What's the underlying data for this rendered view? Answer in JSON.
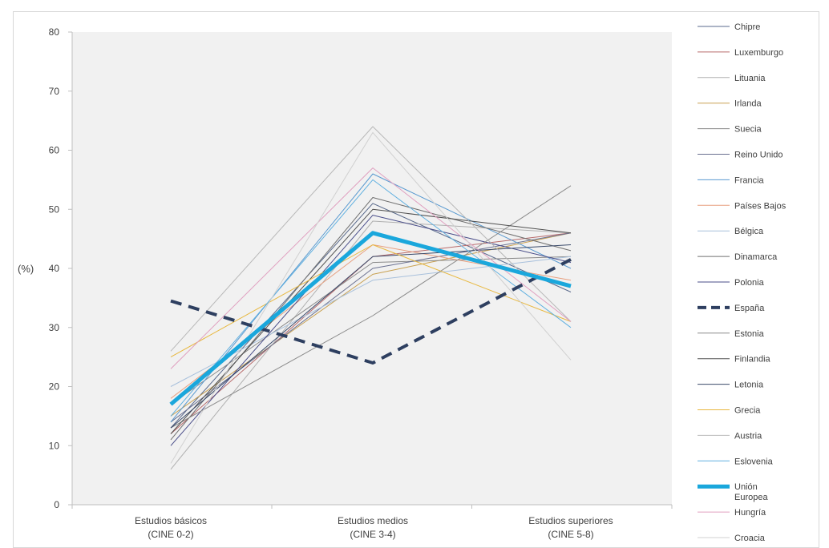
{
  "chart_data": {
    "type": "line",
    "categories": [
      [
        "Estudios básicos",
        "(CINE 0-2)"
      ],
      [
        "Estudios medios",
        "(CINE 3-4)"
      ],
      [
        "Estudios superiores",
        "(CINE 5-8)"
      ]
    ],
    "ylabel": "(%)",
    "ylim": [
      0,
      80
    ],
    "yticks": [
      0,
      10,
      20,
      30,
      40,
      50,
      60,
      70,
      80
    ],
    "grid": false,
    "plot_background": "#f1f1f1",
    "legend_position": "right",
    "series": [
      {
        "name": "Chipre",
        "values": [
          13,
          51,
          36
        ],
        "color": "#5a6a8c",
        "width": 1,
        "dash": false
      },
      {
        "name": "Luxemburgo",
        "values": [
          12,
          42,
          46
        ],
        "color": "#b86a6a",
        "width": 1,
        "dash": false
      },
      {
        "name": "Lituania",
        "values": [
          6,
          48,
          46
        ],
        "color": "#b0b0b0",
        "width": 1,
        "dash": false
      },
      {
        "name": "Irlanda",
        "values": [
          15,
          39,
          46
        ],
        "color": "#c8a050",
        "width": 1,
        "dash": false
      },
      {
        "name": "Suecia",
        "values": [
          17,
          41,
          42
        ],
        "color": "#8a8a8a",
        "width": 1,
        "dash": false
      },
      {
        "name": "Reino Unido",
        "values": [
          14,
          40,
          46
        ],
        "color": "#6a7090",
        "width": 1,
        "dash": false
      },
      {
        "name": "Francia",
        "values": [
          14,
          56,
          40
        ],
        "color": "#5a9ad0",
        "width": 1,
        "dash": false
      },
      {
        "name": "Países Bajos",
        "values": [
          18,
          44,
          38
        ],
        "color": "#e8a080",
        "width": 1,
        "dash": false
      },
      {
        "name": "Bélgica",
        "values": [
          20,
          38,
          42
        ],
        "color": "#a8c0dc",
        "width": 1,
        "dash": false
      },
      {
        "name": "Dinamarca",
        "values": [
          11,
          52,
          43
        ],
        "color": "#707070",
        "width": 1,
        "dash": false
      },
      {
        "name": "Polonia",
        "values": [
          10,
          49,
          41
        ],
        "color": "#4a4e8a",
        "width": 1,
        "dash": false
      },
      {
        "name": "España",
        "values": [
          34.5,
          24,
          41.5
        ],
        "color": "#2e3f60",
        "width": 4,
        "dash": true
      },
      {
        "name": "Estonia",
        "values": [
          13,
          32,
          54
        ],
        "color": "#8a8a8a",
        "width": 1,
        "dash": false
      },
      {
        "name": "Finlandia",
        "values": [
          12,
          50,
          46
        ],
        "color": "#505050",
        "width": 1,
        "dash": false
      },
      {
        "name": "Letonia",
        "values": [
          13,
          42,
          44
        ],
        "color": "#3a4a6a",
        "width": 1,
        "dash": false
      },
      {
        "name": "Grecia",
        "values": [
          25,
          44,
          31
        ],
        "color": "#e8b840",
        "width": 1,
        "dash": false
      },
      {
        "name": "Austria",
        "values": [
          26,
          64,
          31
        ],
        "color": "#b8b8b8",
        "width": 1,
        "dash": false
      },
      {
        "name": "Eslovenia",
        "values": [
          15,
          55,
          30
        ],
        "color": "#60b0e0",
        "width": 1,
        "dash": false
      },
      {
        "name": "Unión Europea",
        "values": [
          17,
          46,
          37
        ],
        "color": "#1aa7dc",
        "width": 5,
        "dash": false
      },
      {
        "name": "Hungría",
        "values": [
          23,
          57,
          31
        ],
        "color": "#e0a0c0",
        "width": 1,
        "dash": false
      },
      {
        "name": "Croacia",
        "values": [
          7,
          63,
          24.5
        ],
        "color": "#d0d0d0",
        "width": 1,
        "dash": false
      }
    ]
  }
}
